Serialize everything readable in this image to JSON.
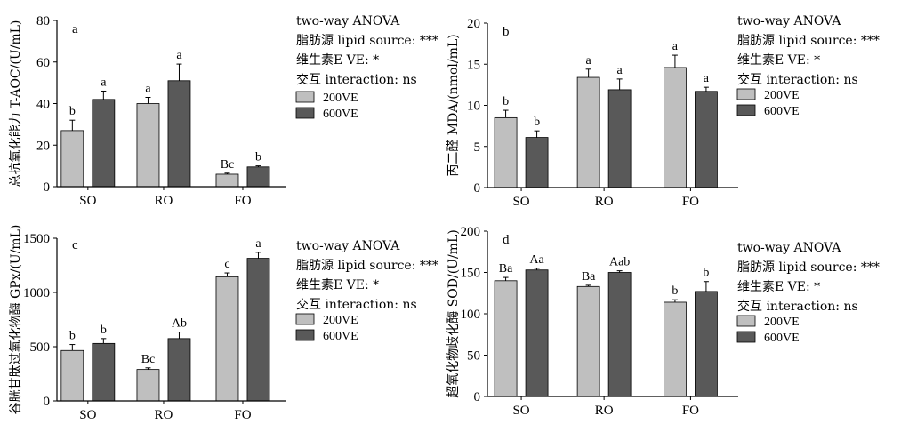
{
  "legend_labels": [
    "200VE",
    "600VE"
  ],
  "colors": {
    "200VE": "#bfbfbf",
    "600VE": "#595959",
    "axis": "#000000"
  },
  "chart_data": [
    {
      "type": "bar",
      "panel": "a",
      "ylabel": "总抗氧化能力 T-AOC/(U/mL)",
      "ylim": [
        0,
        80
      ],
      "yticks": [
        0,
        20,
        40,
        60,
        80
      ],
      "categories": [
        "SO",
        "RO",
        "FO"
      ],
      "series": [
        {
          "name": "200VE",
          "values": [
            27,
            40,
            6
          ],
          "errors": [
            5,
            3,
            0.5
          ],
          "labels": [
            "b",
            "a",
            "Bc"
          ]
        },
        {
          "name": "600VE",
          "values": [
            42,
            51,
            9.5
          ],
          "errors": [
            4,
            8,
            0.5
          ],
          "labels": [
            "a",
            "a",
            "b"
          ]
        }
      ],
      "stats": [
        "two-way ANOVA",
        "脂肪源 lipid source: ***",
        "维生素E  VE: *",
        "交互 interaction: ns"
      ]
    },
    {
      "type": "bar",
      "panel": "b",
      "ylabel": "丙二醛 MDA/(nmol/mL)",
      "ylim": [
        0,
        20
      ],
      "yticks": [
        0,
        5,
        10,
        15,
        20
      ],
      "categories": [
        "SO",
        "RO",
        "FO"
      ],
      "series": [
        {
          "name": "200VE",
          "values": [
            8.5,
            13.4,
            14.6
          ],
          "errors": [
            0.9,
            1.0,
            1.5
          ],
          "labels": [
            "b",
            "a",
            "a"
          ]
        },
        {
          "name": "600VE",
          "values": [
            6.1,
            11.9,
            11.7
          ],
          "errors": [
            0.8,
            1.3,
            0.5
          ],
          "labels": [
            "b",
            "a",
            "a"
          ]
        }
      ],
      "stats": [
        "two-way ANOVA",
        "脂肪源 lipid source: ***",
        "维生素E  VE: *",
        "交互 interaction: ns"
      ]
    },
    {
      "type": "bar",
      "panel": "c",
      "ylabel": "谷胱甘肽过氧化物酶 GPx/(U/mL)",
      "ylim": [
        0,
        1500
      ],
      "yticks": [
        0,
        500,
        1000,
        1500
      ],
      "categories": [
        "SO",
        "RO",
        "FO"
      ],
      "series": [
        {
          "name": "200VE",
          "values": [
            465,
            290,
            1145
          ],
          "errors": [
            55,
            15,
            35
          ],
          "labels": [
            "b",
            "Bc",
            "c"
          ]
        },
        {
          "name": "600VE",
          "values": [
            530,
            575,
            1315
          ],
          "errors": [
            45,
            60,
            55
          ],
          "labels": [
            "b",
            "Ab",
            "a"
          ]
        }
      ],
      "stats": [
        "two-way ANOVA",
        "脂肪源 lipid source: ***",
        "维生素E  VE: *",
        "交互 interaction: ns"
      ]
    },
    {
      "type": "bar",
      "panel": "d",
      "ylabel": "超氧化物歧化酶 SOD/(U/mL)",
      "ylim": [
        0,
        200
      ],
      "yticks": [
        0,
        50,
        100,
        150,
        200
      ],
      "categories": [
        "SO",
        "RO",
        "FO"
      ],
      "series": [
        {
          "name": "200VE",
          "values": [
            140,
            133,
            114
          ],
          "errors": [
            4,
            1.5,
            3
          ],
          "labels": [
            "Ba",
            "Ba",
            "b"
          ]
        },
        {
          "name": "600VE",
          "values": [
            153,
            150,
            127
          ],
          "errors": [
            2,
            2,
            12
          ],
          "labels": [
            "Aa",
            "Aab",
            "b"
          ]
        }
      ],
      "stats": [
        "two-way ANOVA",
        "脂肪源 lipid source: ***",
        "维生素E  VE: *",
        "交互 interaction: ns"
      ]
    }
  ]
}
